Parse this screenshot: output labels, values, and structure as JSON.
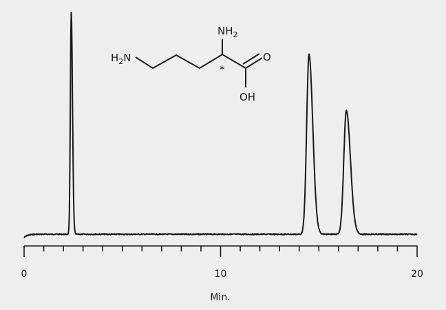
{
  "chart_data": {
    "type": "line",
    "title": "",
    "xlabel": "Min.",
    "ylabel": "",
    "xlim": [
      0,
      20
    ],
    "x_ticks_major": [
      0,
      10,
      20
    ],
    "x_tick_labels": [
      "0",
      "10",
      "20"
    ],
    "x_minor_tick_step": 1,
    "y_axis_shown": false,
    "grid": false,
    "legend": "none",
    "line_color": "#1a1a1a",
    "background": "#eeeeee",
    "series": [
      {
        "peaks": [
          {
            "retention_time": 2.4,
            "relative_height": 100
          },
          {
            "retention_time": 14.5,
            "relative_height": 81
          },
          {
            "retention_time": 16.4,
            "relative_height": 56
          }
        ]
      }
    ]
  },
  "structure": {
    "amine_left": "H2N",
    "amine_top": "NH2",
    "carbonyl_o": "O",
    "hydroxyl": "OH",
    "chiral_mark": "*"
  }
}
